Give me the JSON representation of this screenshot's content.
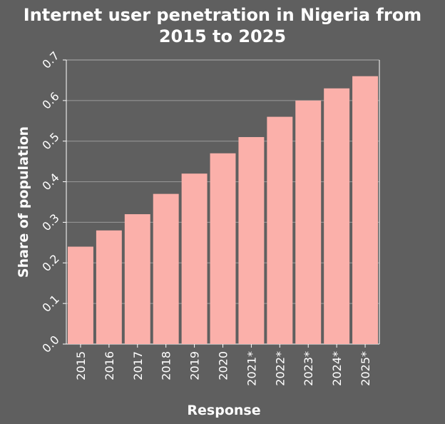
{
  "chart_data": {
    "type": "bar",
    "title_line1": "Internet user penetration in Nigeria from",
    "title_line2": "2015 to 2025",
    "xlabel": "Response",
    "ylabel": "Share of population",
    "categories": [
      "2015",
      "2016",
      "2017",
      "2018",
      "2019",
      "2020",
      "2021*",
      "2022*",
      "2023*",
      "2024*",
      "2025*"
    ],
    "values": [
      0.24,
      0.28,
      0.32,
      0.37,
      0.42,
      0.47,
      0.51,
      0.56,
      0.6,
      0.63,
      0.66
    ],
    "ylim": [
      0,
      0.7
    ],
    "yticks": [
      "0.0",
      "0.1",
      "0.2",
      "0.3",
      "0.4",
      "0.5",
      "0.6",
      "0.7"
    ],
    "grid": true,
    "bar_color": "#fbb0aa",
    "background_color": "#5f5f5f",
    "grid_color": "#9a9a9a"
  }
}
